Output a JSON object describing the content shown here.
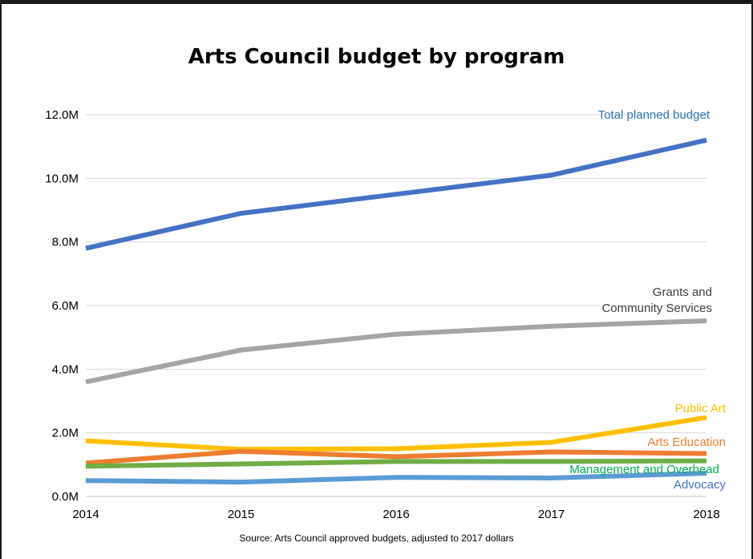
{
  "chart_data": {
    "type": "line",
    "title": "Arts Council budget by program",
    "xlabel": "",
    "ylabel": "",
    "x": [
      "2014",
      "2015",
      "2016",
      "2017",
      "2018"
    ],
    "ylim": [
      0,
      12000000
    ],
    "yticks": [
      0,
      2000000,
      4000000,
      6000000,
      8000000,
      10000000,
      12000000
    ],
    "ytick_labels": [
      "0.0M",
      "2.0M",
      "4.0M",
      "6.0M",
      "8.0M",
      "10.0M",
      "12.0M"
    ],
    "grid": "horizontal",
    "legend": "none (series labelled at line ends)",
    "source": "Source: Arts Council approved budgets, adjusted to 2017 dollars",
    "series": [
      {
        "name": "Total planned budget",
        "label_lines": [
          "Total planned budget"
        ],
        "color": "#4472c4",
        "values": [
          7800000,
          8900000,
          9500000,
          10100000,
          11200000
        ]
      },
      {
        "name": "Grants and Community Services",
        "label_lines": [
          "Grants and",
          "Community Services"
        ],
        "color": "#a5a5a5",
        "values": [
          3600000,
          4600000,
          5100000,
          5350000,
          5520000
        ]
      },
      {
        "name": "Public Art",
        "label_lines": [
          "Public Art"
        ],
        "color": "#ffc000",
        "values": [
          1750000,
          1480000,
          1500000,
          1700000,
          2480000
        ]
      },
      {
        "name": "Arts Education",
        "label_lines": [
          "Arts Education"
        ],
        "color": "#ed7d31",
        "values": [
          1050000,
          1420000,
          1250000,
          1400000,
          1350000
        ]
      },
      {
        "name": "Management and Overhead",
        "label_lines": [
          "Management and Overhead"
        ],
        "color": "#70ad47",
        "values": [
          950000,
          1020000,
          1100000,
          1100000,
          1120000
        ]
      },
      {
        "name": "Advocacy",
        "label_lines": [
          "Advocacy"
        ],
        "color": "#5b9bd5",
        "values": [
          500000,
          450000,
          600000,
          580000,
          730000
        ]
      }
    ]
  }
}
